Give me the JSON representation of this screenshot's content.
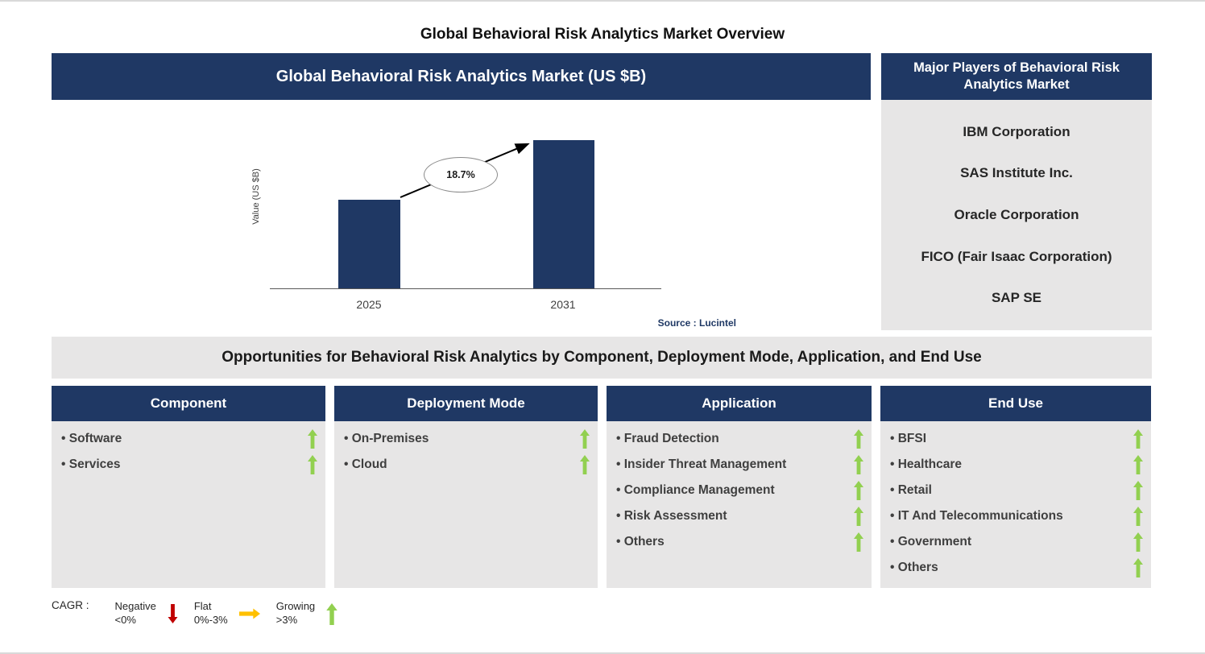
{
  "page_title": "Global Behavioral Risk Analytics Market Overview",
  "colors": {
    "navy": "#1F3864",
    "panel_gray": "#E7E6E6",
    "growing_green": "#92D050",
    "negative_red": "#C00000",
    "flat_orange": "#FFC000"
  },
  "chart_panel": {
    "title": "Global Behavioral Risk Analytics Market (US $B)",
    "y_axis_label": "Value (US $B)",
    "cagr_label": "18.7%",
    "source": "Source : Lucintel"
  },
  "chart_data": {
    "type": "bar",
    "title": "Global Behavioral Risk Analytics Market (US $B)",
    "categories": [
      "2025",
      "2031"
    ],
    "values_relative": [
      0.6,
      1.0
    ],
    "ylabel": "Value (US $B)",
    "annotations": [
      "18.7%"
    ],
    "grid": false,
    "legend": false,
    "note": "No numeric axis values shown; bar heights are relative with 18.7% CAGR annotation between 2025 and 2031."
  },
  "players": {
    "title": "Major Players of Behavioral Risk Analytics Market",
    "items": [
      "IBM Corporation",
      "SAS Institute Inc.",
      "Oracle Corporation",
      "FICO (Fair Isaac Corporation)",
      "SAP SE"
    ]
  },
  "opportunities_banner": "Opportunities for Behavioral Risk Analytics by Component, Deployment Mode, Application, and End Use",
  "columns": [
    {
      "title": "Component",
      "items": [
        "Software",
        "Services"
      ]
    },
    {
      "title": "Deployment Mode",
      "items": [
        "On-Premises",
        "Cloud"
      ]
    },
    {
      "title": "Application",
      "items": [
        "Fraud Detection",
        "Insider Threat Management",
        "Compliance Management",
        "Risk Assessment",
        "Others"
      ]
    },
    {
      "title": "End Use",
      "items": [
        "BFSI",
        "Healthcare",
        "Retail",
        "IT And Telecommunications",
        "Government",
        "Others"
      ]
    }
  ],
  "legend": {
    "prefix": "CAGR :",
    "items": [
      {
        "label": "Negative",
        "sublabel": "<0%",
        "icon": "down-arrow",
        "color": "#C00000"
      },
      {
        "label": "Flat",
        "sublabel": "0%-3%",
        "icon": "right-arrow",
        "color": "#FFC000"
      },
      {
        "label": "Growing",
        "sublabel": ">3%",
        "icon": "up-arrow",
        "color": "#92D050"
      }
    ]
  }
}
